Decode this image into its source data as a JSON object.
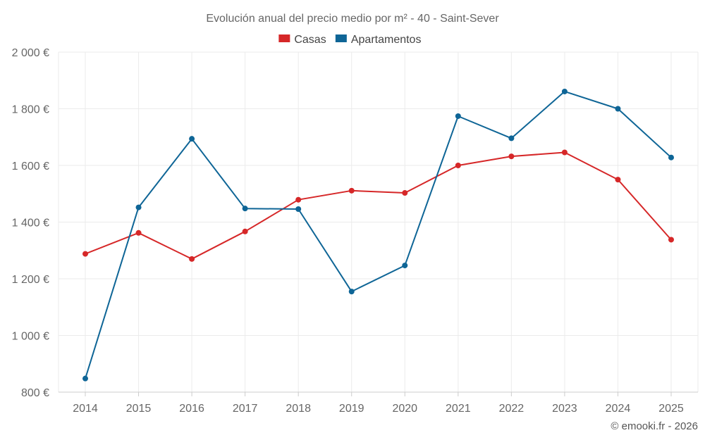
{
  "chart_data": {
    "type": "line",
    "title": "Evolución anual del precio medio por m² - 40 - Saint-Sever",
    "categories": [
      "2014",
      "2015",
      "2016",
      "2017",
      "2018",
      "2019",
      "2020",
      "2021",
      "2022",
      "2023",
      "2024",
      "2025"
    ],
    "series": [
      {
        "name": "Casas",
        "color": "#d62728",
        "values": [
          1288,
          1362,
          1270,
          1367,
          1479,
          1511,
          1503,
          1600,
          1632,
          1646,
          1550,
          1338
        ]
      },
      {
        "name": "Apartamentos",
        "color": "#0e6596",
        "values": [
          848,
          1452,
          1694,
          1448,
          1446,
          1155,
          1247,
          1774,
          1696,
          1861,
          1800,
          1628
        ]
      }
    ],
    "ylim": [
      800,
      2000
    ],
    "yticks": [
      800,
      1000,
      1200,
      1400,
      1600,
      1800,
      2000
    ],
    "ytick_labels": [
      "800 €",
      "1 000 €",
      "1 200 €",
      "1 400 €",
      "1 600 €",
      "1 800 €",
      "2 000 €"
    ],
    "grid": true,
    "legend": "top-center"
  },
  "credit": "© emooki.fr - 2026"
}
